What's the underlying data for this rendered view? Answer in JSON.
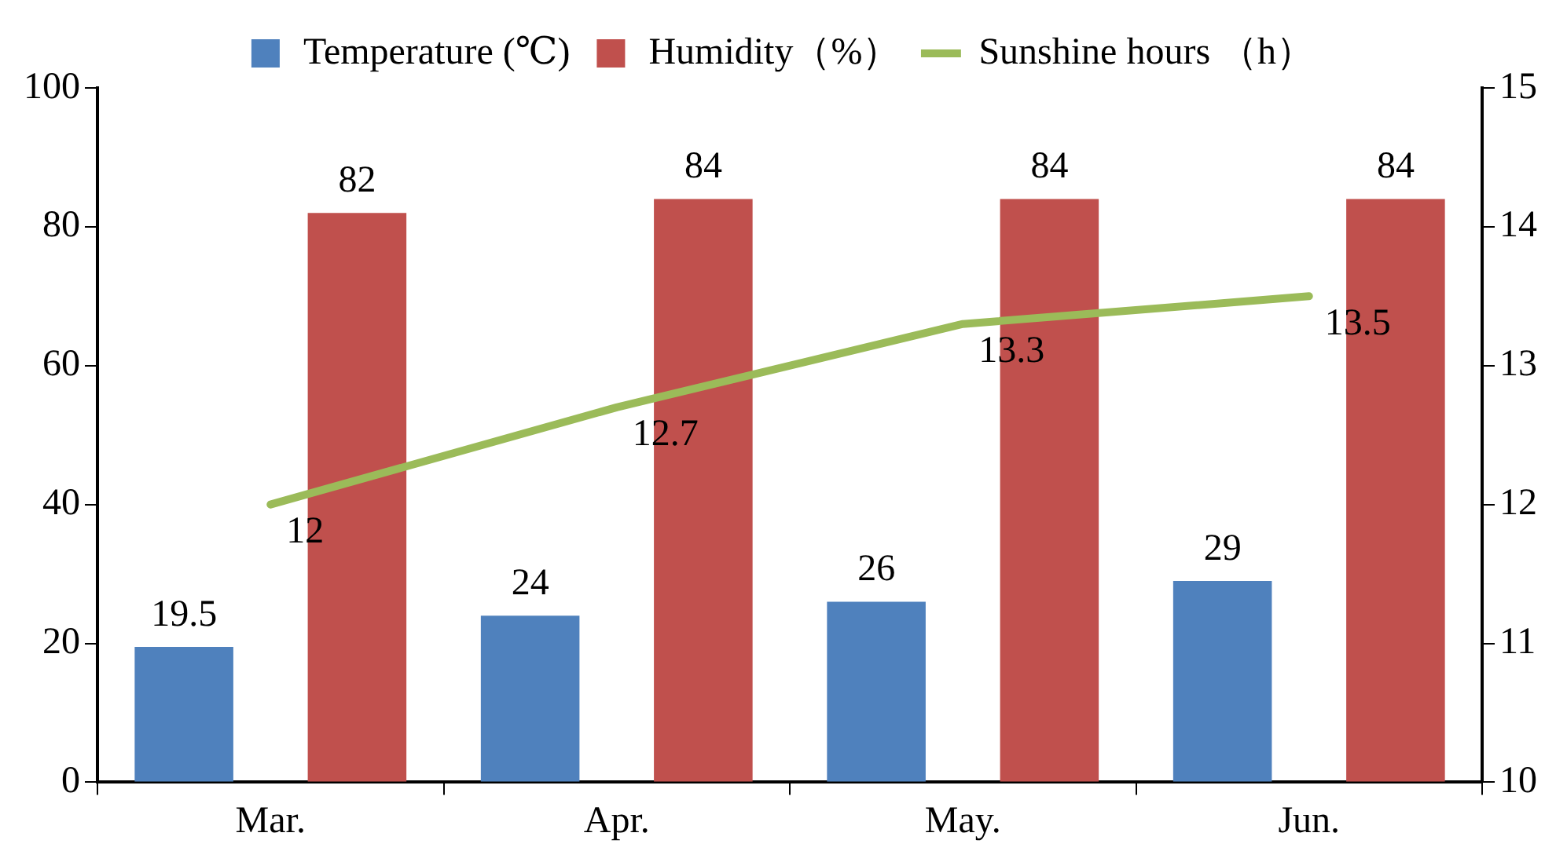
{
  "chart_data": {
    "type": "bar",
    "categories": [
      "Mar.",
      "Apr.",
      "May.",
      "Jun."
    ],
    "series": [
      {
        "name": "Temperature (℃)",
        "color": "#4f81bd",
        "values": [
          19.5,
          24,
          26,
          29
        ]
      },
      {
        "name": "Humidity（%）",
        "color": "#c0504d",
        "values": [
          82,
          84,
          84,
          84
        ]
      },
      {
        "name": "Sunshine hours （h）",
        "color": "#9bbb59",
        "type": "line",
        "axis": "y2",
        "values": [
          12,
          12.7,
          13.3,
          13.5
        ]
      }
    ],
    "ylim": [
      0,
      100
    ],
    "yticks": [
      0,
      20,
      40,
      60,
      80,
      100
    ],
    "y2lim": [
      10,
      15
    ],
    "y2ticks": [
      10,
      11,
      12,
      13,
      14,
      15
    ],
    "grid": false,
    "legend": "top",
    "data_labels": true
  }
}
